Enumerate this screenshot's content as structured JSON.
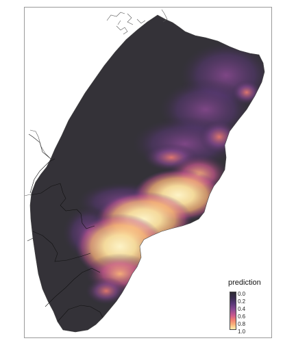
{
  "legend": {
    "title": "prediction",
    "ticks": [
      "0.0",
      "0.2",
      "0.4",
      "0.6",
      "0.8",
      "1.0"
    ]
  },
  "colors": {
    "scale": [
      "#2f2b35",
      "#3a2d4f",
      "#5b3879",
      "#8b4a93",
      "#c9588e",
      "#f07e70",
      "#f9b27a",
      "#fde2a0",
      "#fdf3c7"
    ],
    "land_base": "#343238",
    "border_line": "#111111",
    "frame": "#999999"
  }
}
